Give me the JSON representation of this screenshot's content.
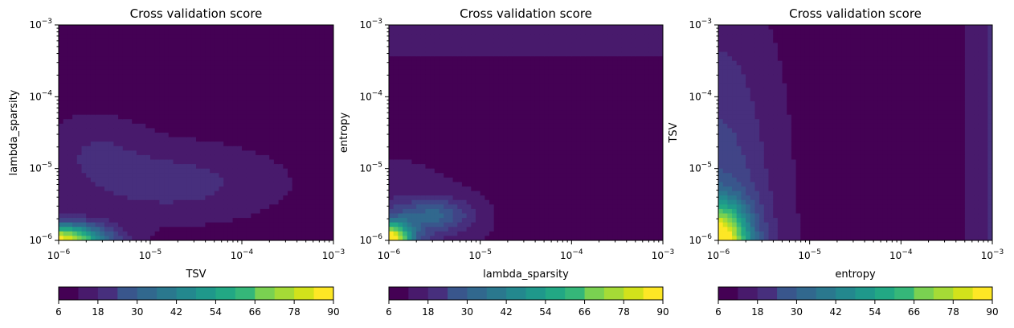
{
  "chart_data": [
    {
      "type": "contour",
      "title": "Cross validation score",
      "xlabel": "TSV",
      "ylabel": "lambda_sparsity",
      "xscale": "log",
      "yscale": "log",
      "xlim": [
        1e-06,
        0.001
      ],
      "ylim": [
        1e-06,
        0.001
      ],
      "xticks": [
        "10^-6",
        "10^-5",
        "10^-4",
        "10^-3"
      ],
      "yticks": [
        "10^-6",
        "10^-5",
        "10^-4",
        "10^-3"
      ],
      "colorbar": {
        "min": 6,
        "max": 90,
        "ticks": [
          "6",
          "18",
          "30",
          "42",
          "54",
          "66",
          "78",
          "90"
        ]
      },
      "approximate_level_regions": [
        {
          "description": "low plateau covering upper part of plot",
          "value": 9
        },
        {
          "description": "mid band below 1e-4",
          "value": 15
        },
        {
          "description": "bottom-left corner peak",
          "value": 85
        }
      ]
    },
    {
      "type": "contour",
      "title": "Cross validation score",
      "xlabel": "lambda_sparsity",
      "ylabel": "entropy",
      "xscale": "log",
      "yscale": "log",
      "xlim": [
        1e-06,
        0.001
      ],
      "ylim": [
        1e-06,
        0.001
      ],
      "xticks": [
        "10^-6",
        "10^-5",
        "10^-4",
        "10^-3"
      ],
      "yticks": [
        "10^-6",
        "10^-5",
        "10^-4",
        "10^-3"
      ],
      "colorbar": {
        "min": 6,
        "max": 90,
        "ticks": [
          "6",
          "18",
          "30",
          "42",
          "54",
          "66",
          "78",
          "90"
        ]
      },
      "approximate_level_regions": [
        {
          "description": "large low region centre and right",
          "value": 9
        },
        {
          "description": "surrounding band",
          "value": 15
        },
        {
          "description": "bottom-left corner peak",
          "value": 85
        }
      ]
    },
    {
      "type": "contour",
      "title": "Cross validation score",
      "xlabel": "entropy",
      "ylabel": "TSV",
      "xscale": "log",
      "yscale": "log",
      "xlim": [
        1e-06,
        0.001
      ],
      "ylim": [
        1e-06,
        0.001
      ],
      "xticks": [
        "10^-6",
        "10^-5",
        "10^-4",
        "10^-3"
      ],
      "yticks": [
        "10^-6",
        "10^-5",
        "10^-4",
        "10^-3"
      ],
      "colorbar": {
        "min": 6,
        "max": 90,
        "ticks": [
          "6",
          "18",
          "30",
          "42",
          "54",
          "66",
          "78",
          "90"
        ]
      },
      "approximate_level_regions": [
        {
          "description": "low vertical band near x 5e-5 to 5e-4",
          "value": 9
        },
        {
          "description": "right edge band",
          "value": 15
        },
        {
          "description": "bottom-left corner peak",
          "value": 80
        }
      ]
    }
  ]
}
